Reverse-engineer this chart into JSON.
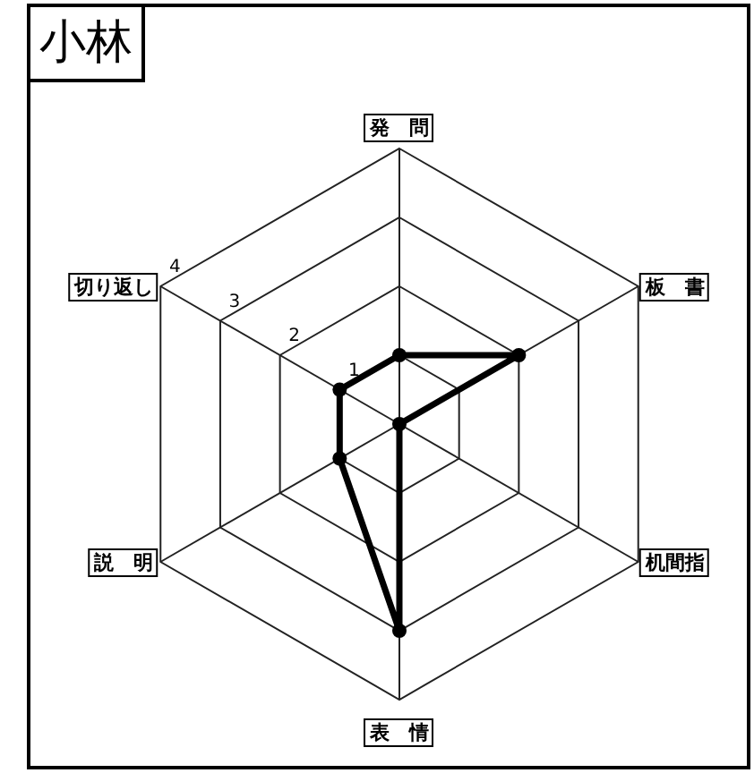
{
  "chart_data": {
    "type": "radar",
    "title": "小林",
    "categories": [
      "発　問",
      "板　書",
      "机間指",
      "表　情",
      "説　明",
      "切り返し"
    ],
    "series": [
      {
        "color": "#000000",
        "values": [
          1,
          2,
          0,
          3,
          1,
          1
        ]
      }
    ],
    "ylim": [
      0,
      4
    ],
    "yticks": [
      1,
      2,
      3,
      4
    ],
    "marker": "circle",
    "grid": true
  }
}
